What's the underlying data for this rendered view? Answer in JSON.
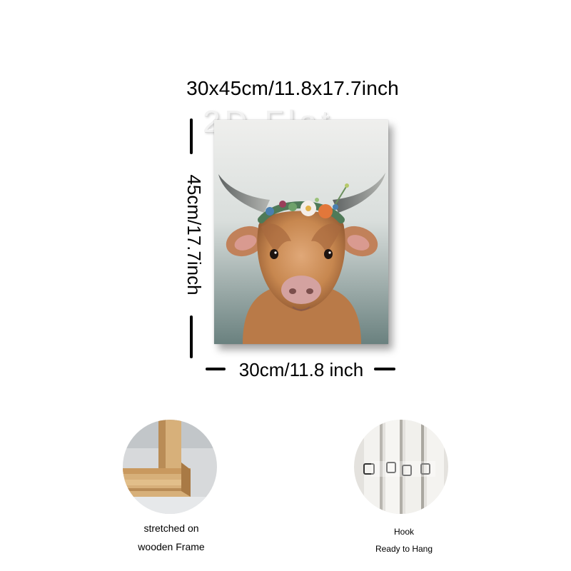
{
  "dimensions": {
    "total": "30x45cm/11.8x17.7inch",
    "height": "45cm/17.7inch",
    "width": "30cm/11.8 inch"
  },
  "watermark": "2D Flat",
  "painting": {
    "subject": "highland-calf-with-flower-crown-icon",
    "colors": {
      "background_top": "#eeeeec",
      "background_bottom": "#6f8584",
      "fur": "#c98a57",
      "horn": "#777a7a",
      "nose": "#d4a2a0"
    }
  },
  "details": {
    "frame": {
      "icon": "wooden-frame-corner-icon",
      "caption_line1": "stretched on",
      "caption_line2": "wooden Frame"
    },
    "hook": {
      "icon": "hook-clips-icon",
      "caption_line1": "Hook",
      "caption_line2": "Ready to Hang"
    }
  }
}
